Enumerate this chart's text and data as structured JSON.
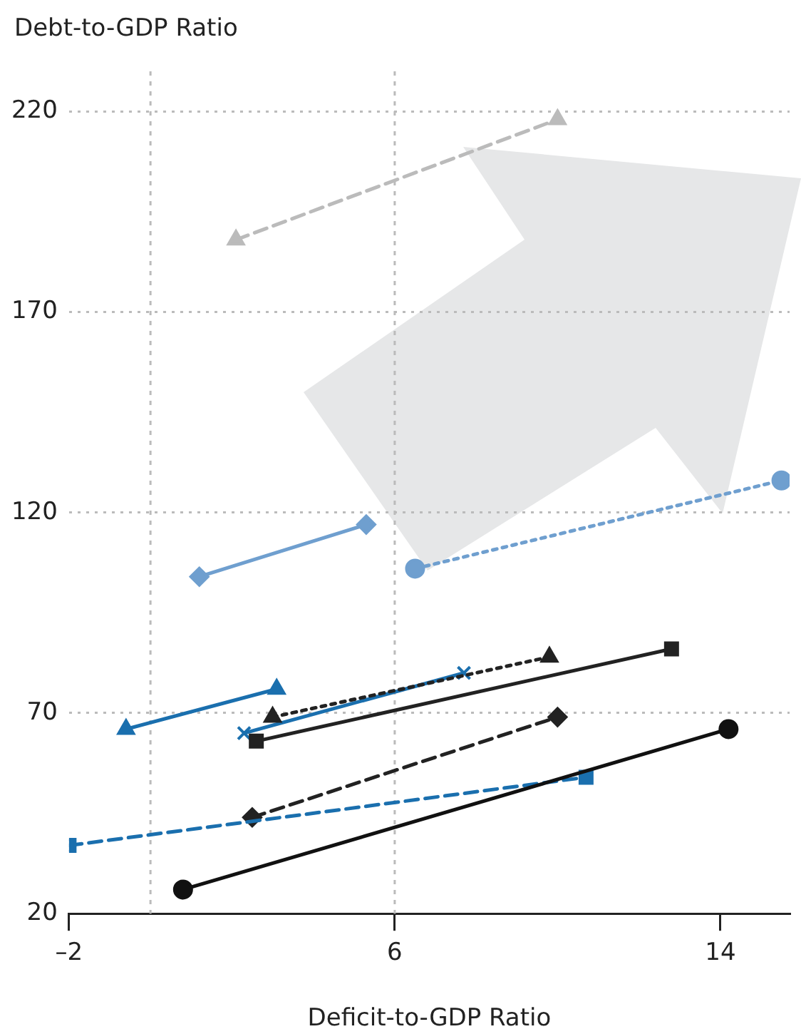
{
  "chart_data": {
    "type": "line",
    "xlabel": "Deficit-to-GDP Ratio",
    "ylabel": "Debt-to-GDP Ratio",
    "xlim": [
      -2,
      15.7
    ],
    "xticks": [
      {
        "value": -2,
        "label": "–2"
      },
      6,
      14
    ],
    "ylim": [
      20,
      230
    ],
    "yticks": [
      20,
      70,
      120,
      170,
      220
    ],
    "grid": "y",
    "legend": false,
    "ref_lines": [
      {
        "axis": "x",
        "value": 0,
        "color": "#bbbbbb",
        "line_style": "dotted"
      },
      {
        "axis": "x",
        "value": 6,
        "color": "#bbbbbb",
        "line_style": "dotted"
      }
    ],
    "series": [
      {
        "color": "#111111",
        "x": [
          0.8,
          14.2
        ],
        "values": [
          26,
          66
        ],
        "marker": "circle",
        "line_style": "solid"
      },
      {
        "color": "#1a6fae",
        "x": [
          -2,
          10.7
        ],
        "values": [
          37,
          54
        ],
        "marker": "square",
        "line_style": "dashed"
      },
      {
        "color": "#222222",
        "x": [
          2.5,
          10
        ],
        "values": [
          44,
          69
        ],
        "marker": "diamond",
        "line_style": "dashed"
      },
      {
        "color": "#222222",
        "x": [
          2.6,
          12.8
        ],
        "values": [
          63,
          86
        ],
        "marker": "square",
        "line_style": "solid"
      },
      {
        "color": "#222222",
        "x": [
          3,
          9.8
        ],
        "values": [
          69,
          84
        ],
        "marker": "triangle",
        "line_style": "dotted"
      },
      {
        "color": "#1a6fae",
        "x": [
          2.3,
          7.7
        ],
        "values": [
          65,
          80
        ],
        "marker": "cross",
        "line_style": "solid"
      },
      {
        "color": "#1a6fae",
        "x": [
          -0.6,
          3.1
        ],
        "values": [
          66,
          76
        ],
        "marker": "triangle",
        "line_style": "solid"
      },
      {
        "color": "#6f9fcf",
        "x": [
          1.2,
          5.3
        ],
        "values": [
          104,
          117
        ],
        "marker": "diamond",
        "line_style": "solid"
      },
      {
        "color": "#6f9fcf",
        "x": [
          6.5,
          15.5
        ],
        "values": [
          106,
          128
        ],
        "marker": "circle",
        "line_style": "dotted"
      },
      {
        "color": "#bbbbbb",
        "x": [
          2.1,
          10
        ],
        "values": [
          188,
          218
        ],
        "marker": "triangle",
        "line_style": "dashed"
      }
    ]
  }
}
